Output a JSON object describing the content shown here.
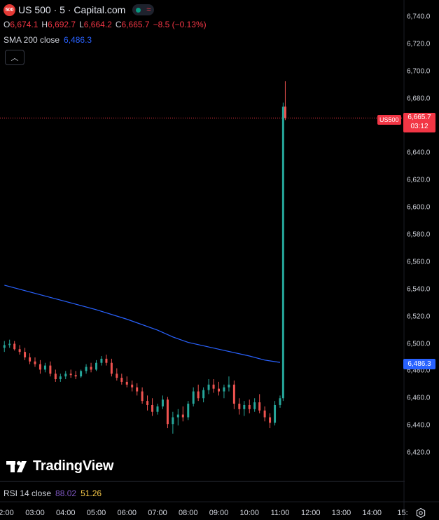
{
  "header": {
    "symbol_badge": "500",
    "title": "US 500 · 5 · Capital.com",
    "market_status_color": "#089981"
  },
  "ohlc": {
    "o_label": "O",
    "o": "6,674.1",
    "h_label": "H",
    "h": "6,692.7",
    "l_label": "L",
    "l": "6,664.2",
    "c_label": "C",
    "c": "6,665.7",
    "change": "−8.5 (−0.13%)"
  },
  "sma": {
    "label": "SMA 200 close",
    "value": "6,486.3"
  },
  "rsi": {
    "label": "RSI 14 close",
    "value1": "88.02",
    "value2": "51.26"
  },
  "price_tag": {
    "symbol": "US500",
    "price": "6,665.7",
    "countdown": "03:12"
  },
  "sma_tag": "6,486.3",
  "logo_text": "TradingView",
  "colors": {
    "up": "#26a69a",
    "down": "#ef5350",
    "sma": "#2962ff",
    "bg": "#000000"
  },
  "chart_data": {
    "type": "candlestick",
    "y_ticks": [
      "6,740.0",
      "6,720.0",
      "6,700.0",
      "6,680.0",
      "6,660.0",
      "6,640.0",
      "6,620.0",
      "6,600.0",
      "6,580.0",
      "6,560.0",
      "6,540.0",
      "6,520.0",
      "6,500.0",
      "6,480.0",
      "6,460.0",
      "6,440.0",
      "6,420.0"
    ],
    "y_tick_values": [
      6740,
      6720,
      6700,
      6680,
      6660,
      6640,
      6620,
      6600,
      6580,
      6560,
      6540,
      6520,
      6500,
      6480,
      6460,
      6440,
      6420
    ],
    "x_ticks": [
      "2:00",
      "03:00",
      "04:00",
      "05:00",
      "06:00",
      "07:00",
      "08:00",
      "09:00",
      "10:00",
      "11:00",
      "12:00",
      "13:00",
      "14:00",
      "15:"
    ],
    "x_tick_hours": [
      2,
      3,
      4,
      5,
      6,
      7,
      8,
      9,
      10,
      11,
      12,
      13,
      14,
      15
    ],
    "ylim": [
      6410,
      6745
    ],
    "last_price": 6665.7,
    "candles": [
      {
        "t": 2.0,
        "o": 6497,
        "h": 6502,
        "l": 6494,
        "c": 6499
      },
      {
        "t": 2.17,
        "o": 6499,
        "h": 6503,
        "l": 6497,
        "c": 6500
      },
      {
        "t": 2.33,
        "o": 6500,
        "h": 6502,
        "l": 6495,
        "c": 6496
      },
      {
        "t": 2.5,
        "o": 6496,
        "h": 6499,
        "l": 6492,
        "c": 6494
      },
      {
        "t": 2.67,
        "o": 6494,
        "h": 6497,
        "l": 6488,
        "c": 6490
      },
      {
        "t": 2.83,
        "o": 6490,
        "h": 6493,
        "l": 6485,
        "c": 6487
      },
      {
        "t": 3.0,
        "o": 6487,
        "h": 6490,
        "l": 6483,
        "c": 6485
      },
      {
        "t": 3.17,
        "o": 6485,
        "h": 6488,
        "l": 6478,
        "c": 6481
      },
      {
        "t": 3.33,
        "o": 6481,
        "h": 6486,
        "l": 6479,
        "c": 6484
      },
      {
        "t": 3.5,
        "o": 6484,
        "h": 6487,
        "l": 6476,
        "c": 6478
      },
      {
        "t": 3.67,
        "o": 6478,
        "h": 6481,
        "l": 6472,
        "c": 6474
      },
      {
        "t": 3.83,
        "o": 6474,
        "h": 6478,
        "l": 6472,
        "c": 6476
      },
      {
        "t": 4.0,
        "o": 6476,
        "h": 6480,
        "l": 6474,
        "c": 6478
      },
      {
        "t": 4.17,
        "o": 6478,
        "h": 6481,
        "l": 6475,
        "c": 6477
      },
      {
        "t": 4.33,
        "o": 6477,
        "h": 6480,
        "l": 6474,
        "c": 6476
      },
      {
        "t": 4.5,
        "o": 6476,
        "h": 6481,
        "l": 6475,
        "c": 6480
      },
      {
        "t": 4.67,
        "o": 6480,
        "h": 6485,
        "l": 6478,
        "c": 6483
      },
      {
        "t": 4.83,
        "o": 6483,
        "h": 6486,
        "l": 6479,
        "c": 6481
      },
      {
        "t": 5.0,
        "o": 6481,
        "h": 6488,
        "l": 6480,
        "c": 6486
      },
      {
        "t": 5.17,
        "o": 6486,
        "h": 6491,
        "l": 6484,
        "c": 6489
      },
      {
        "t": 5.33,
        "o": 6489,
        "h": 6492,
        "l": 6484,
        "c": 6486
      },
      {
        "t": 5.5,
        "o": 6486,
        "h": 6489,
        "l": 6476,
        "c": 6478
      },
      {
        "t": 5.67,
        "o": 6478,
        "h": 6482,
        "l": 6473,
        "c": 6475
      },
      {
        "t": 5.83,
        "o": 6475,
        "h": 6478,
        "l": 6470,
        "c": 6472
      },
      {
        "t": 6.0,
        "o": 6472,
        "h": 6476,
        "l": 6468,
        "c": 6470
      },
      {
        "t": 6.17,
        "o": 6470,
        "h": 6473,
        "l": 6465,
        "c": 6468
      },
      {
        "t": 6.33,
        "o": 6468,
        "h": 6471,
        "l": 6462,
        "c": 6465
      },
      {
        "t": 6.5,
        "o": 6465,
        "h": 6468,
        "l": 6456,
        "c": 6458
      },
      {
        "t": 6.67,
        "o": 6458,
        "h": 6462,
        "l": 6451,
        "c": 6455
      },
      {
        "t": 6.83,
        "o": 6455,
        "h": 6460,
        "l": 6447,
        "c": 6450
      },
      {
        "t": 7.0,
        "o": 6450,
        "h": 6456,
        "l": 6448,
        "c": 6454
      },
      {
        "t": 7.17,
        "o": 6454,
        "h": 6462,
        "l": 6452,
        "c": 6459
      },
      {
        "t": 7.33,
        "o": 6459,
        "h": 6461,
        "l": 6438,
        "c": 6441
      },
      {
        "t": 7.5,
        "o": 6441,
        "h": 6450,
        "l": 6434,
        "c": 6446
      },
      {
        "t": 7.67,
        "o": 6446,
        "h": 6452,
        "l": 6440,
        "c": 6448
      },
      {
        "t": 7.83,
        "o": 6448,
        "h": 6454,
        "l": 6443,
        "c": 6446
      },
      {
        "t": 8.0,
        "o": 6446,
        "h": 6458,
        "l": 6444,
        "c": 6456
      },
      {
        "t": 8.17,
        "o": 6456,
        "h": 6468,
        "l": 6454,
        "c": 6465
      },
      {
        "t": 8.33,
        "o": 6465,
        "h": 6470,
        "l": 6458,
        "c": 6460
      },
      {
        "t": 8.5,
        "o": 6460,
        "h": 6468,
        "l": 6457,
        "c": 6466
      },
      {
        "t": 8.67,
        "o": 6466,
        "h": 6474,
        "l": 6463,
        "c": 6470
      },
      {
        "t": 8.83,
        "o": 6470,
        "h": 6474,
        "l": 6464,
        "c": 6467
      },
      {
        "t": 9.0,
        "o": 6467,
        "h": 6472,
        "l": 6462,
        "c": 6465
      },
      {
        "t": 9.17,
        "o": 6465,
        "h": 6470,
        "l": 6460,
        "c": 6468
      },
      {
        "t": 9.33,
        "o": 6468,
        "h": 6476,
        "l": 6465,
        "c": 6470
      },
      {
        "t": 9.5,
        "o": 6470,
        "h": 6473,
        "l": 6452,
        "c": 6456
      },
      {
        "t": 9.67,
        "o": 6456,
        "h": 6460,
        "l": 6448,
        "c": 6452
      },
      {
        "t": 9.83,
        "o": 6452,
        "h": 6458,
        "l": 6447,
        "c": 6455
      },
      {
        "t": 10.0,
        "o": 6455,
        "h": 6459,
        "l": 6449,
        "c": 6452
      },
      {
        "t": 10.17,
        "o": 6452,
        "h": 6460,
        "l": 6450,
        "c": 6457
      },
      {
        "t": 10.33,
        "o": 6457,
        "h": 6463,
        "l": 6449,
        "c": 6451
      },
      {
        "t": 10.5,
        "o": 6451,
        "h": 6454,
        "l": 6443,
        "c": 6446
      },
      {
        "t": 10.67,
        "o": 6446,
        "h": 6449,
        "l": 6438,
        "c": 6442
      },
      {
        "t": 10.83,
        "o": 6442,
        "h": 6458,
        "l": 6440,
        "c": 6455
      },
      {
        "t": 11.0,
        "o": 6455,
        "h": 6462,
        "l": 6453,
        "c": 6460
      },
      {
        "t": 11.1,
        "o": 6460,
        "h": 6677,
        "l": 6458,
        "c": 6674
      },
      {
        "t": 11.17,
        "o": 6674.1,
        "h": 6692.7,
        "l": 6664.2,
        "c": 6665.7
      }
    ],
    "sma_series": {
      "name": "SMA 200 close",
      "points": [
        [
          2.0,
          6543
        ],
        [
          3.0,
          6537
        ],
        [
          4.0,
          6531
        ],
        [
          5.0,
          6525
        ],
        [
          6.0,
          6518
        ],
        [
          7.0,
          6510
        ],
        [
          7.5,
          6505
        ],
        [
          8.0,
          6501
        ],
        [
          9.0,
          6496
        ],
        [
          10.0,
          6491
        ],
        [
          10.5,
          6488
        ],
        [
          11.0,
          6486.3
        ]
      ]
    }
  }
}
